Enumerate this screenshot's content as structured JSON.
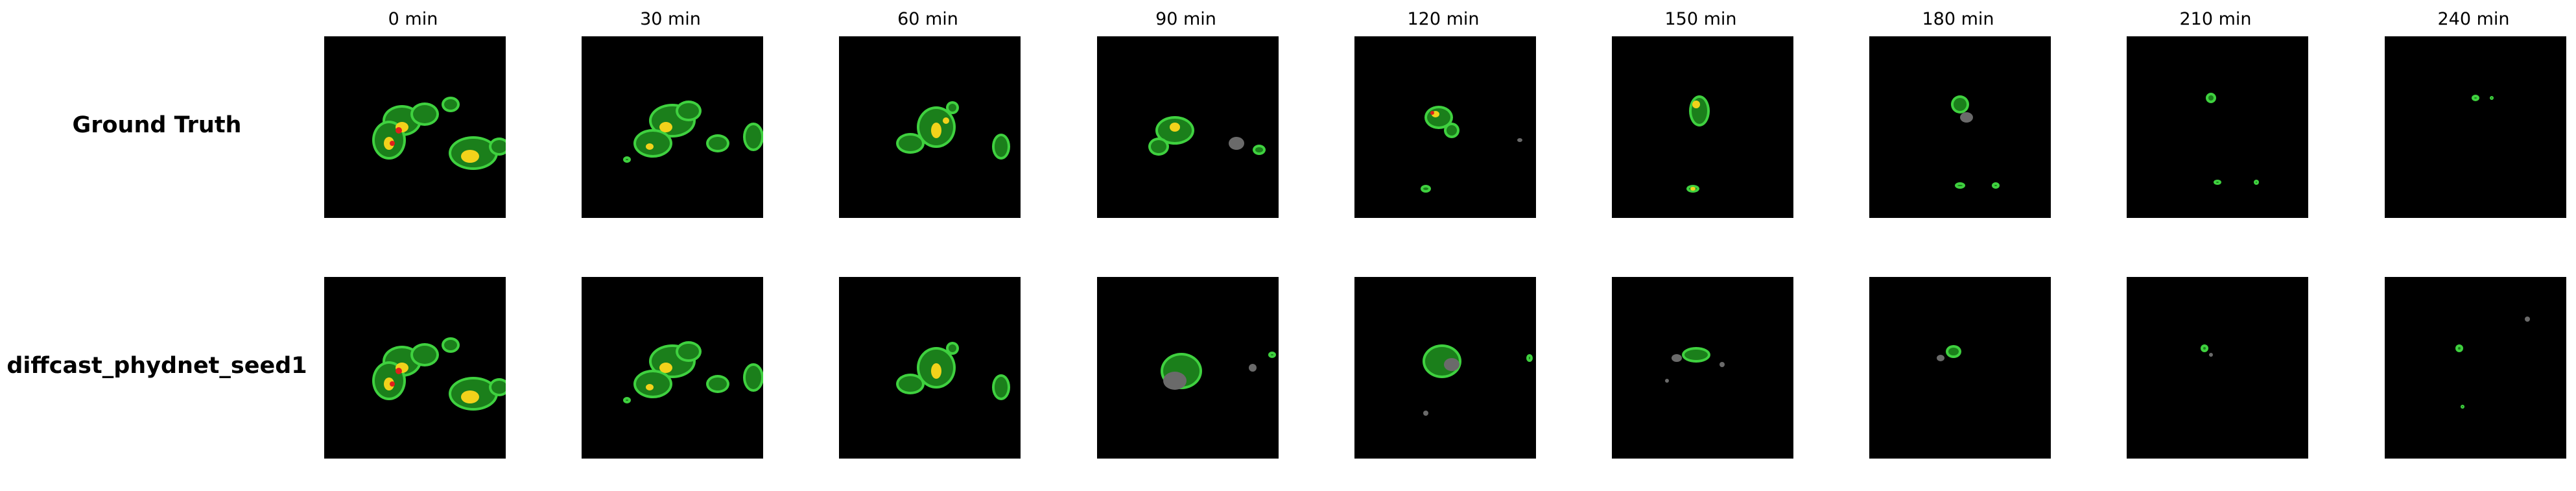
{
  "time_labels": [
    "0 min",
    "30 min",
    "60 min",
    "90 min",
    "120 min",
    "150 min",
    "180 min",
    "210 min",
    "240 min"
  ],
  "rows": [
    {
      "label": "Ground Truth"
    },
    {
      "label": "diffcast_phydnet_seed1"
    }
  ],
  "colors": {
    "background": "#000000",
    "light_echo": "#1b7f1b",
    "moderate_echo": "#3fd13f",
    "strong_echo": "#f2d21b",
    "very_strong_echo": "#e0201b",
    "noise": "#6a6a6a"
  }
}
